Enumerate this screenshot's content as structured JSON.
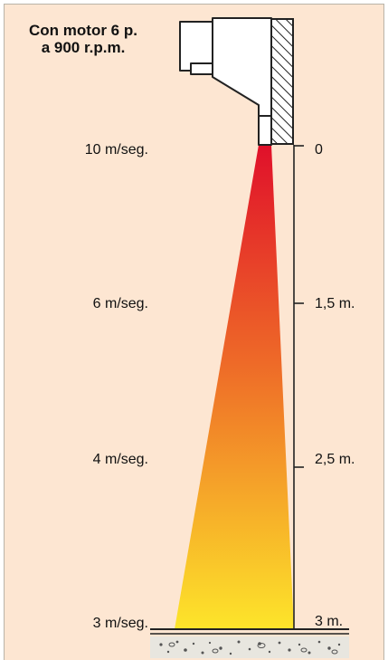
{
  "title": {
    "line1": "Con motor 6 p.",
    "line2": "a 900 r.p.m."
  },
  "velocity_labels": [
    "10 m/seg.",
    "6 m/seg.",
    "4 m/seg.",
    "3 m/seg."
  ],
  "distance_labels": [
    "0",
    "1,5 m.",
    "2,5 m.",
    "3 m."
  ],
  "colors": {
    "panel_background": "#fde6d2",
    "air_jet_top": "#e0102a",
    "air_jet_mid": "#ee6a28",
    "air_jet_bottom": "#fde52a"
  }
}
